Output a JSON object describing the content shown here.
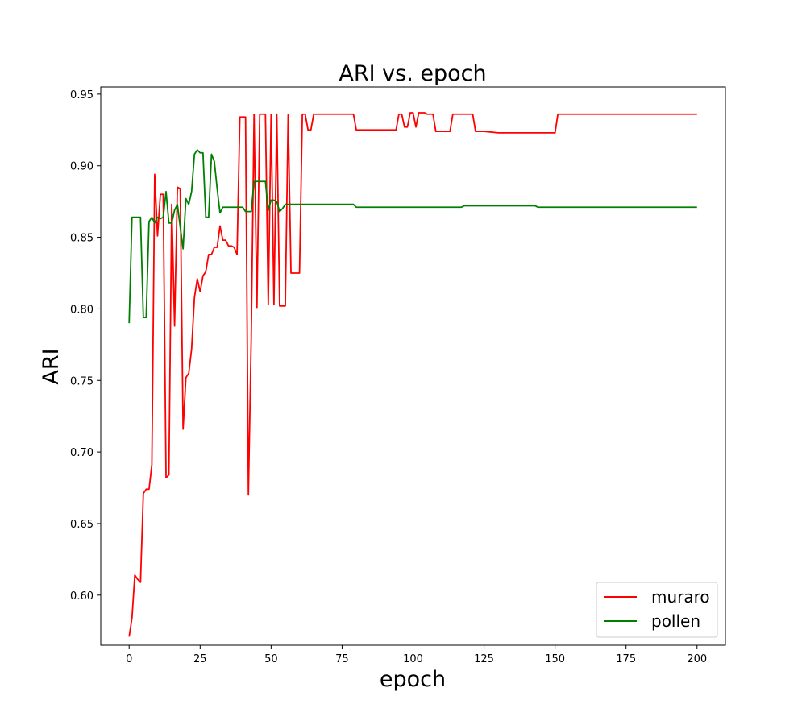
{
  "chart_data": {
    "type": "line",
    "title": "ARI vs. epoch",
    "xlabel": "epoch",
    "ylabel": "ARI",
    "xlim": [
      -10,
      210
    ],
    "ylim": [
      0.565,
      0.955
    ],
    "xticks": [
      0,
      25,
      50,
      75,
      100,
      125,
      150,
      175,
      200
    ],
    "yticks": [
      0.6,
      0.65,
      0.7,
      0.75,
      0.8,
      0.85,
      0.9,
      0.95
    ],
    "legend_position": "lower-right",
    "grid": false,
    "series": [
      {
        "name": "muraro",
        "color": "#ff0000",
        "points": [
          [
            0,
            0.571
          ],
          [
            1,
            0.584
          ],
          [
            2,
            0.614
          ],
          [
            3,
            0.611
          ],
          [
            4,
            0.609
          ],
          [
            5,
            0.671
          ],
          [
            6,
            0.674
          ],
          [
            7,
            0.674
          ],
          [
            8,
            0.691
          ],
          [
            9,
            0.894
          ],
          [
            10,
            0.851
          ],
          [
            11,
            0.88
          ],
          [
            12,
            0.88
          ],
          [
            13,
            0.682
          ],
          [
            14,
            0.684
          ],
          [
            15,
            0.873
          ],
          [
            16,
            0.788
          ],
          [
            17,
            0.885
          ],
          [
            18,
            0.884
          ],
          [
            19,
            0.716
          ],
          [
            20,
            0.752
          ],
          [
            21,
            0.755
          ],
          [
            22,
            0.772
          ],
          [
            23,
            0.808
          ],
          [
            24,
            0.821
          ],
          [
            25,
            0.812
          ],
          [
            26,
            0.823
          ],
          [
            27,
            0.826
          ],
          [
            28,
            0.838
          ],
          [
            29,
            0.838
          ],
          [
            30,
            0.843
          ],
          [
            31,
            0.843
          ],
          [
            32,
            0.858
          ],
          [
            33,
            0.848
          ],
          [
            34,
            0.848
          ],
          [
            35,
            0.844
          ],
          [
            36,
            0.844
          ],
          [
            37,
            0.843
          ],
          [
            38,
            0.838
          ],
          [
            39,
            0.934
          ],
          [
            40,
            0.934
          ],
          [
            41,
            0.934
          ],
          [
            42,
            0.67
          ],
          [
            43,
            0.78
          ],
          [
            44,
            0.936
          ],
          [
            45,
            0.801
          ],
          [
            46,
            0.936
          ],
          [
            47,
            0.936
          ],
          [
            48,
            0.936
          ],
          [
            49,
            0.803
          ],
          [
            50,
            0.936
          ],
          [
            51,
            0.803
          ],
          [
            52,
            0.936
          ],
          [
            53,
            0.802
          ],
          [
            54,
            0.802
          ],
          [
            55,
            0.802
          ],
          [
            56,
            0.936
          ],
          [
            57,
            0.825
          ],
          [
            58,
            0.825
          ],
          [
            59,
            0.825
          ],
          [
            60,
            0.825
          ],
          [
            61,
            0.936
          ],
          [
            62,
            0.936
          ],
          [
            63,
            0.925
          ],
          [
            64,
            0.925
          ],
          [
            65,
            0.936
          ],
          [
            66,
            0.936
          ],
          [
            70,
            0.936
          ],
          [
            75,
            0.936
          ],
          [
            79,
            0.936
          ],
          [
            80,
            0.925
          ],
          [
            85,
            0.925
          ],
          [
            90,
            0.925
          ],
          [
            94,
            0.925
          ],
          [
            95,
            0.936
          ],
          [
            96,
            0.936
          ],
          [
            97,
            0.927
          ],
          [
            98,
            0.927
          ],
          [
            99,
            0.937
          ],
          [
            100,
            0.937
          ],
          [
            101,
            0.927
          ],
          [
            102,
            0.937
          ],
          [
            103,
            0.937
          ],
          [
            104,
            0.937
          ],
          [
            105,
            0.936
          ],
          [
            106,
            0.936
          ],
          [
            107,
            0.936
          ],
          [
            108,
            0.924
          ],
          [
            110,
            0.924
          ],
          [
            113,
            0.924
          ],
          [
            114,
            0.936
          ],
          [
            118,
            0.936
          ],
          [
            121,
            0.936
          ],
          [
            122,
            0.924
          ],
          [
            125,
            0.924
          ],
          [
            130,
            0.923
          ],
          [
            140,
            0.923
          ],
          [
            149,
            0.923
          ],
          [
            150,
            0.923
          ],
          [
            151,
            0.936
          ],
          [
            160,
            0.936
          ],
          [
            170,
            0.936
          ],
          [
            180,
            0.936
          ],
          [
            187,
            0.936
          ],
          [
            190,
            0.936
          ],
          [
            200,
            0.936
          ]
        ]
      },
      {
        "name": "pollen",
        "color": "#008000",
        "points": [
          [
            0,
            0.79
          ],
          [
            1,
            0.864
          ],
          [
            2,
            0.864
          ],
          [
            3,
            0.864
          ],
          [
            4,
            0.864
          ],
          [
            5,
            0.794
          ],
          [
            6,
            0.794
          ],
          [
            7,
            0.861
          ],
          [
            8,
            0.864
          ],
          [
            9,
            0.86
          ],
          [
            10,
            0.864
          ],
          [
            11,
            0.863
          ],
          [
            12,
            0.864
          ],
          [
            13,
            0.882
          ],
          [
            14,
            0.86
          ],
          [
            15,
            0.86
          ],
          [
            16,
            0.869
          ],
          [
            17,
            0.873
          ],
          [
            18,
            0.857
          ],
          [
            19,
            0.842
          ],
          [
            20,
            0.877
          ],
          [
            21,
            0.873
          ],
          [
            22,
            0.882
          ],
          [
            23,
            0.908
          ],
          [
            24,
            0.911
          ],
          [
            25,
            0.909
          ],
          [
            26,
            0.909
          ],
          [
            27,
            0.864
          ],
          [
            28,
            0.864
          ],
          [
            29,
            0.908
          ],
          [
            30,
            0.903
          ],
          [
            31,
            0.884
          ],
          [
            32,
            0.867
          ],
          [
            33,
            0.871
          ],
          [
            35,
            0.871
          ],
          [
            40,
            0.871
          ],
          [
            41,
            0.868
          ],
          [
            42,
            0.868
          ],
          [
            43,
            0.868
          ],
          [
            44,
            0.889
          ],
          [
            45,
            0.889
          ],
          [
            46,
            0.889
          ],
          [
            47,
            0.889
          ],
          [
            48,
            0.889
          ],
          [
            49,
            0.869
          ],
          [
            50,
            0.876
          ],
          [
            51,
            0.876
          ],
          [
            52,
            0.875
          ],
          [
            53,
            0.868
          ],
          [
            54,
            0.87
          ],
          [
            55,
            0.873
          ],
          [
            60,
            0.873
          ],
          [
            70,
            0.873
          ],
          [
            79,
            0.873
          ],
          [
            80,
            0.871
          ],
          [
            90,
            0.871
          ],
          [
            100,
            0.871
          ],
          [
            110,
            0.871
          ],
          [
            117,
            0.871
          ],
          [
            118,
            0.872
          ],
          [
            130,
            0.872
          ],
          [
            143,
            0.872
          ],
          [
            144,
            0.871
          ],
          [
            160,
            0.871
          ],
          [
            180,
            0.871
          ],
          [
            200,
            0.871
          ]
        ]
      }
    ]
  }
}
